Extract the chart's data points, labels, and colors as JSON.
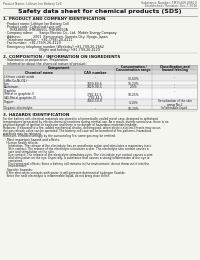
{
  "title": "Safety data sheet for chemical products (SDS)",
  "header_left": "Product Name: Lithium Ion Battery Cell",
  "header_right_line1": "Substance Number: TM15449-00610",
  "header_right_line2": "Established / Revision: Dec.7.2016",
  "section1_title": "1. PRODUCT AND COMPANY IDENTIFICATION",
  "section1_lines": [
    "  · Product name: Lithium Ion Battery Cell",
    "  · Product code: Cylindrical-type cell",
    "       IHR18650J, IHR18650L, IHR18650A",
    "  · Company name:      Sanyo Electric Co., Ltd.  Mobile Energy Company",
    "  · Address:            2001  Kamionosen, Sumoto-City, Hyogo, Japan",
    "  · Telephone number:   +81-(799)-20-4111",
    "  · Fax number:  +81-(799)-26-4129",
    "  · Emergency telephone number (Weekday) +81-799-20-2662",
    "                                    (Night and holiday) +81-799-26-4129"
  ],
  "section2_title": "2. COMPOSITION / INFORMATION ON INGREDIENTS",
  "section2_intro": "  · Substance or preparation: Preparation",
  "section2_sub": "  · Information about the chemical nature of product:",
  "table_col1_header": "Chemical name",
  "table_col2_header": "CAS number",
  "table_col3_header": "Concentration /\nConcentration range",
  "table_col4_header": "Classification and\nhazard labeling",
  "table_comp_header": "Component",
  "table_rows": [
    [
      "Lithium cobalt oxide",
      "-",
      "30-60%",
      "-"
    ],
    [
      "(LiMn-Co-Ni-O2)",
      "",
      "",
      ""
    ],
    [
      "Iron",
      "7439-89-6",
      "10-20%",
      "-"
    ],
    [
      "Aluminum",
      "7429-90-5",
      "2-5%",
      "-"
    ],
    [
      "Graphite",
      "",
      "10-25%",
      "-"
    ],
    [
      "(Metal in graphite-I)",
      "7782-42-5",
      "",
      ""
    ],
    [
      "(All-Metal graphite-II)",
      "7782-44-2",
      "",
      ""
    ],
    [
      "Copper",
      "7440-50-8",
      "5-10%",
      "Sensitization of the skin"
    ],
    [
      "",
      "",
      "",
      "group No.2"
    ],
    [
      "Organic electrolyte",
      "-",
      "10-20%",
      "Inflammable liquid"
    ]
  ],
  "section3_title": "3. HAZARDS IDENTIFICATION",
  "section3_para1": [
    "For the battery cell, chemical materials are stored in a hermetically sealed metal case, designed to withstand",
    "temperatures generated by electro-chemical reactions during normal use. As a result, during normal use, there is no",
    "physical danger of ignition or explosion and there is no danger of hazardous materials leakage.",
    "However, if exposed to a fire, added mechanical shocks, decomposed, when electric-electric-chronic may occur,",
    "the gas release valve can be operated. The battery cell case will be breached of fire-patterns, hazardous",
    "materials may be released.",
    "Moreover, if heated strongly by the surrounding fire, some gas may be emitted."
  ],
  "section3_bullet1": "  · Most important hazard and effects:",
  "section3_sub1": [
    "    Human health effects:",
    "      Inhalation: The release of the electrolyte has an anesthesia action and stimulates a respiratory tract.",
    "      Skin contact: The release of the electrolyte stimulates a skin. The electrolyte skin contact causes a",
    "      sore and stimulation on the skin.",
    "      Eye contact: The release of the electrolyte stimulates eyes. The electrolyte eye contact causes a sore",
    "      and stimulation on the eye. Especially, a substance that causes a strong inflammation of the eye is",
    "      contained.",
    "      Environmental effects: Since a battery cell remains in the environment, do not throw out it into the",
    "      environment."
  ],
  "section3_bullet2": "  · Specific hazards:",
  "section3_sub2": [
    "    If the electrolyte contacts with water, it will generate detrimental hydrogen fluoride.",
    "    Since the neat electrolyte is inflammable liquid, do not bring close to fire."
  ],
  "bg_color": "#f5f5f0",
  "text_color": "#1a1a1a",
  "title_color": "#111111",
  "table_header_bg": "#c8c8c8",
  "table_subheader_bg": "#d8d8d8",
  "row_bg_odd": "#ebebeb",
  "row_bg_even": "#f8f8f8",
  "line_color": "#aaaaaa"
}
